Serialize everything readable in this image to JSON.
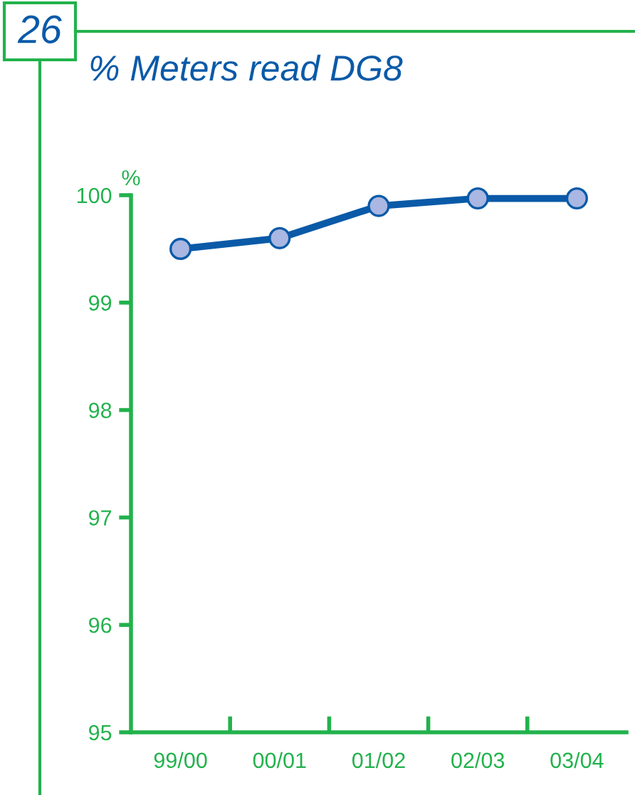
{
  "chart_data": {
    "type": "line",
    "title": "% Meters read DG8",
    "ylabel": "%",
    "annotations": [
      "26"
    ],
    "categories": [
      "99/00",
      "00/01",
      "01/02",
      "02/03",
      "03/04"
    ],
    "series": [
      {
        "color": "#0a5aa8",
        "values": [
          99.5,
          99.6,
          99.9,
          99.97,
          99.97
        ]
      }
    ],
    "ylim": [
      95,
      100
    ],
    "yticks": [
      95,
      96,
      97,
      98,
      99,
      100
    ],
    "marker": "circle",
    "line_style": "solid",
    "grid": false,
    "legend": false
  }
}
